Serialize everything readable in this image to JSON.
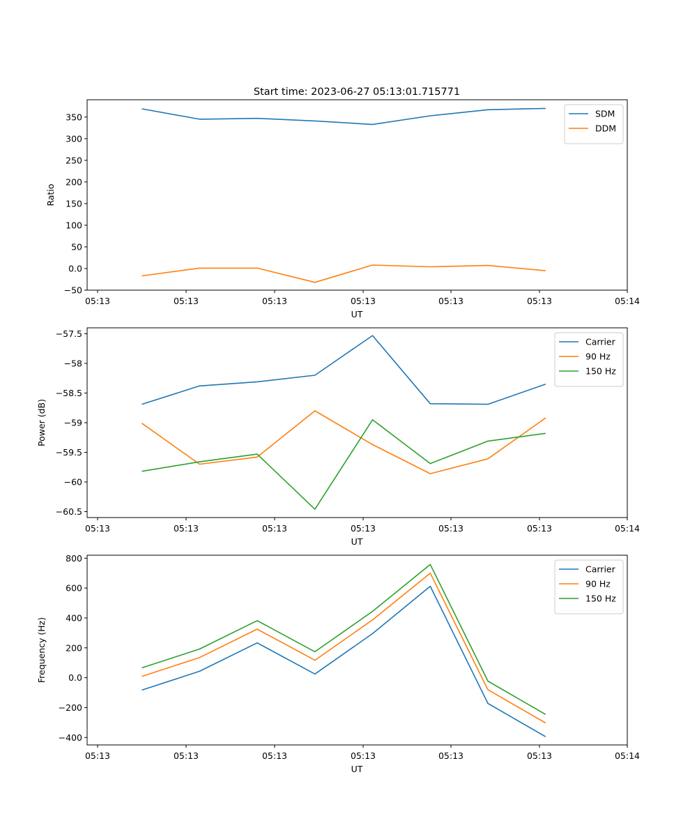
{
  "figure": {
    "title": "Start time: 2023-06-27 05:13:01.715771"
  },
  "colors": {
    "blue": "#1f77b4",
    "orange": "#ff7f0e",
    "green": "#2ca02c"
  },
  "chart_data": [
    {
      "type": "line",
      "title": "Start time: 2023-06-27 05:13:01.715771",
      "xlabel": "UT",
      "ylabel": "Ratio",
      "x_ticks": [
        "05:13",
        "05:13",
        "05:13",
        "05:13",
        "05:13",
        "05:13",
        "05:14"
      ],
      "y_ticks": [
        -50,
        0,
        50,
        100,
        150,
        200,
        250,
        300,
        350
      ],
      "ylim": [
        -50,
        390
      ],
      "legend": "top-right",
      "x": [
        1,
        2,
        3,
        4,
        5,
        6,
        7,
        8
      ],
      "series": [
        {
          "name": "SDM",
          "color": "#1f77b4",
          "values": [
            369,
            345,
            347,
            341,
            333,
            353,
            367,
            370
          ]
        },
        {
          "name": "DDM",
          "color": "#ff7f0e",
          "values": [
            -17,
            1,
            1,
            -32,
            8,
            4,
            7,
            -5
          ]
        }
      ]
    },
    {
      "type": "line",
      "title": "",
      "xlabel": "UT",
      "ylabel": "Power (dB)",
      "x_ticks": [
        "05:13",
        "05:13",
        "05:13",
        "05:13",
        "05:13",
        "05:13",
        "05:14"
      ],
      "y_ticks": [
        -60.5,
        -60.0,
        -59.5,
        -59.0,
        -58.5,
        -58.0,
        -57.5
      ],
      "ylim": [
        -60.6,
        -57.4
      ],
      "legend": "top-right",
      "x": [
        1,
        2,
        3,
        4,
        5,
        6,
        7,
        8
      ],
      "series": [
        {
          "name": "Carrier",
          "color": "#1f77b4",
          "values": [
            -58.69,
            -58.38,
            -58.31,
            -58.2,
            -57.53,
            -58.68,
            -58.69,
            -58.35
          ]
        },
        {
          "name": "90 Hz",
          "color": "#ff7f0e",
          "values": [
            -59.01,
            -59.7,
            -59.58,
            -58.8,
            -59.37,
            -59.86,
            -59.61,
            -58.92
          ]
        },
        {
          "name": "150 Hz",
          "color": "#2ca02c",
          "values": [
            -59.82,
            -59.66,
            -59.53,
            -60.46,
            -58.95,
            -59.69,
            -59.31,
            -59.18
          ]
        }
      ]
    },
    {
      "type": "line",
      "title": "",
      "xlabel": "UT",
      "ylabel": "Frequency (Hz)",
      "x_ticks": [
        "05:13",
        "05:13",
        "05:13",
        "05:13",
        "05:13",
        "05:13",
        "05:14"
      ],
      "y_ticks": [
        -400,
        -200,
        0,
        200,
        400,
        600,
        800
      ],
      "ylim": [
        -450,
        820
      ],
      "legend": "top-right",
      "x": [
        1,
        2,
        3,
        4,
        5,
        6,
        7,
        8
      ],
      "series": [
        {
          "name": "Carrier",
          "color": "#1f77b4",
          "values": [
            -83,
            43,
            233,
            25,
            295,
            612,
            -172,
            -395
          ]
        },
        {
          "name": "90 Hz",
          "color": "#ff7f0e",
          "values": [
            9,
            135,
            325,
            117,
            387,
            700,
            -80,
            -303
          ]
        },
        {
          "name": "150 Hz",
          "color": "#2ca02c",
          "values": [
            66,
            192,
            382,
            174,
            444,
            758,
            -23,
            -246
          ]
        }
      ]
    }
  ]
}
